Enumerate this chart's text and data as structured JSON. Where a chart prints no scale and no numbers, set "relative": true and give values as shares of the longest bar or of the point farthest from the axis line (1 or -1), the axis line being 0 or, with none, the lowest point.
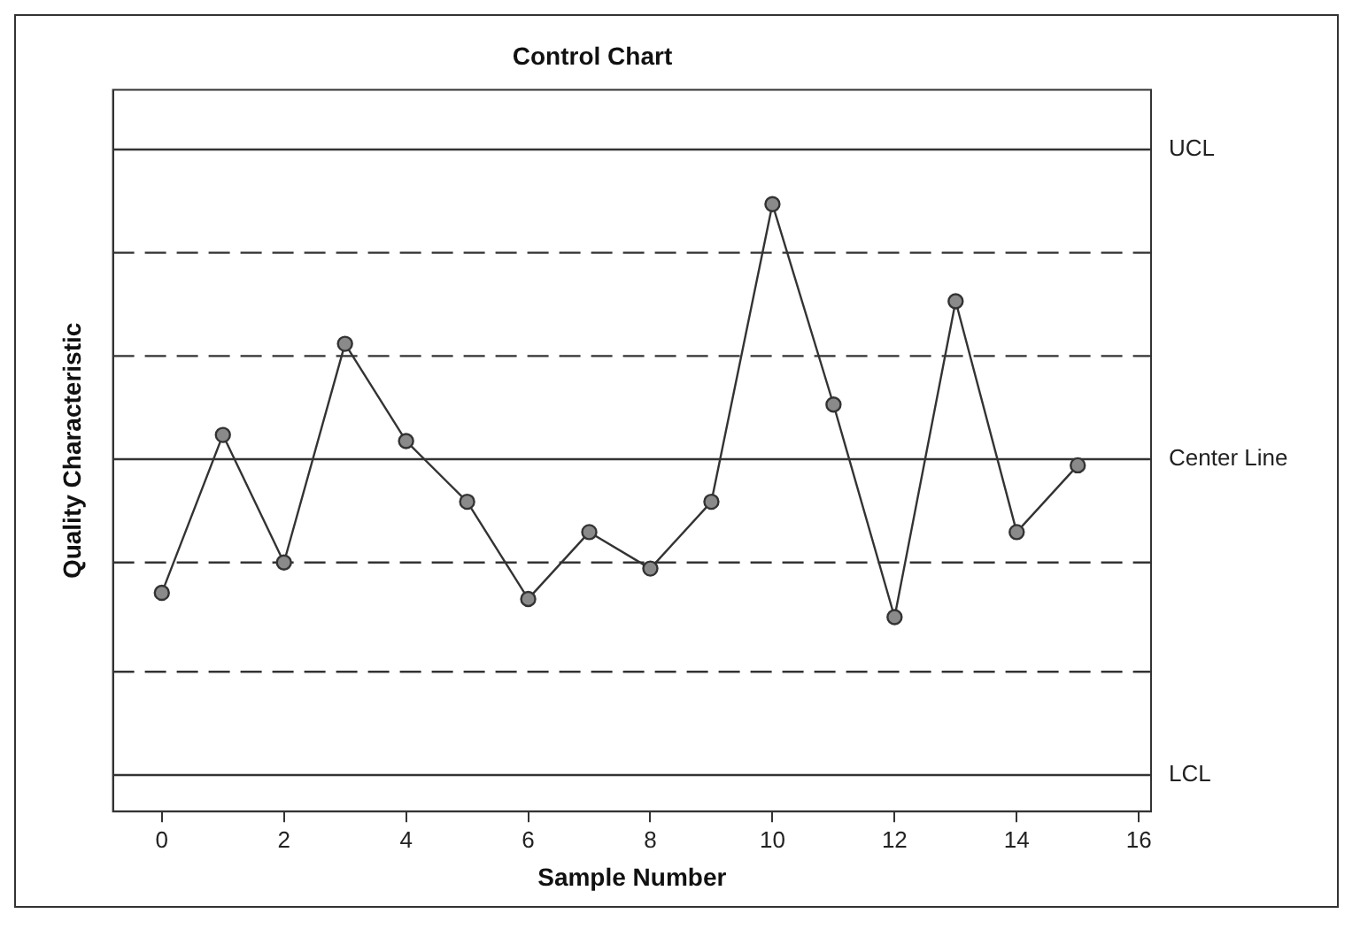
{
  "chart_data": {
    "type": "line",
    "title": "Control Chart",
    "xlabel": "Sample Number",
    "ylabel": "Quality Characteristic",
    "relative": true,
    "x": [
      0,
      1,
      2,
      3,
      4,
      5,
      6,
      7,
      8,
      9,
      10,
      11,
      12,
      13,
      14,
      15
    ],
    "xlim": [
      -0.8,
      16.2
    ],
    "xticks": [
      0,
      2,
      4,
      6,
      8,
      10,
      12,
      14,
      16
    ],
    "series": [
      {
        "color": "#333333",
        "values": [
          0.36,
          0.62,
          0.41,
          0.77,
          0.61,
          0.51,
          0.35,
          0.46,
          0.4,
          0.51,
          1,
          0.67,
          0.32,
          0.84,
          0.46,
          0.57
        ]
      }
    ],
    "ref_lines": [
      {
        "axis": "y",
        "value": 1.09,
        "label": "UCL",
        "color": "#333333",
        "line_style": "solid"
      },
      {
        "axis": "y",
        "value": 0.92,
        "color": "#333333",
        "line_style": "dashed"
      },
      {
        "axis": "y",
        "value": 0.75,
        "color": "#333333",
        "line_style": "dashed"
      },
      {
        "axis": "y",
        "value": 0.58,
        "label": "Center Line",
        "color": "#333333",
        "line_style": "solid"
      },
      {
        "axis": "y",
        "value": 0.41,
        "color": "#333333",
        "line_style": "dashed"
      },
      {
        "axis": "y",
        "value": 0.23,
        "color": "#333333",
        "line_style": "dashed"
      },
      {
        "axis": "y",
        "value": 0.06,
        "label": "LCL",
        "color": "#333333",
        "line_style": "solid"
      }
    ],
    "grid": false,
    "legend": false,
    "marker": "circle",
    "line_style": "solid"
  }
}
